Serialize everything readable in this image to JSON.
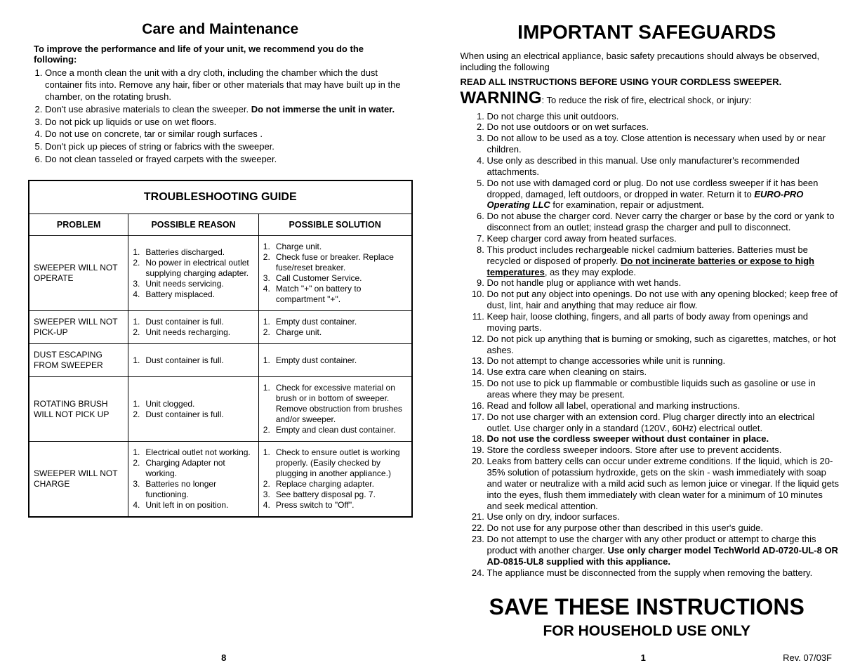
{
  "left": {
    "title": "Care and Maintenance",
    "intro": "To improve the  performance and life of your unit, we recommend you do the following:",
    "items": [
      {
        "pre": "Once a month clean the unit with a dry cloth, including the chamber which the dust container fits into. Remove any hair, fiber or other materials that may have built up in the chamber, on the rotating brush."
      },
      {
        "pre": "Don't use abrasive materials to clean the sweeper. ",
        "bold": "Do not immerse the unit in water."
      },
      {
        "pre": "Do not pick up liquids or use on wet floors."
      },
      {
        "pre": "Do not use on concrete, tar or similar rough surfaces ."
      },
      {
        "pre": "Don't pick up pieces of string or fabrics with the sweeper."
      },
      {
        "pre": "Do not clean tasseled or frayed carpets with the sweeper."
      }
    ],
    "trouble": {
      "title": "TROUBLESHOOTING GUIDE",
      "headers": [
        "PROBLEM",
        "POSSIBLE REASON",
        "POSSIBLE SOLUTION"
      ],
      "rows": [
        {
          "problem": "SWEEPER WILL NOT OPERATE",
          "reason": [
            "Batteries discharged.",
            "No power in electrical outlet supplying charging adapter.",
            "Unit needs servicing.",
            "Battery misplaced."
          ],
          "solution": [
            "Charge unit.",
            "Check fuse or breaker. Replace fuse/reset breaker.",
            "Call Customer Service.",
            "Match \"+\" on battery to compartment \"+\"."
          ]
        },
        {
          "problem": "SWEEPER  WILL NOT PICK-UP",
          "reason": [
            "Dust container is full.",
            "Unit needs recharging."
          ],
          "solution": [
            "Empty dust container.",
            "Charge unit."
          ]
        },
        {
          "problem": "DUST ESCAPING FROM SWEEPER",
          "reason": [
            "Dust container is full."
          ],
          "solution": [
            "Empty dust container."
          ]
        },
        {
          "problem": "ROTATING BRUSH WILL NOT PICK UP",
          "reason": [
            "Unit clogged.",
            "Dust container is full."
          ],
          "solution": [
            "Check for excessive material on brush or in bottom of sweeper. Remove obstruction from brushes and/or sweeper.",
            "Empty and clean dust container."
          ]
        },
        {
          "problem": "SWEEPER WILL NOT CHARGE",
          "reason": [
            "Electrical outlet not working.",
            "Charging Adapter not working.",
            "Batteries no longer functioning.",
            "Unit left in on position."
          ],
          "solution": [
            "Check to ensure outlet is working properly. (Easily checked by plugging in another appliance.)",
            "Replace charging adapter.",
            "See battery disposal pg. 7.",
            "Press switch to \"Off\"."
          ]
        }
      ]
    },
    "page_num": "8"
  },
  "right": {
    "title": "IMPORTANT SAFEGUARDS",
    "intro": "When using an electrical appliance, basic safety precautions should always be observed, including the following",
    "read_all": "READ ALL INSTRUCTIONS BEFORE USING YOUR CORDLESS SWEEPER.",
    "warning_big": "WARNING",
    "warning_rest": ": To reduce the risk of fire, electrical shock, or injury:",
    "items": [
      "Do not charge this unit outdoors.",
      "Do not use outdoors or on wet surfaces.",
      "Do not allow to be used as a toy.  Close attention is necessary when used by or near children.",
      "Use only as described in this manual.  Use only manufacturer's recommended attachments.",
      "Do not use with damaged cord or plug.  Do not use cordless sweeper if it has been dropped, damaged, left outdoors, or dropped in water. Return it to <bi>EURO-PRO Operating LLC</bi> for examination, repair or adjustment.",
      "Do not abuse the charger cord.  Never carry the charger or base by the cord or yank to disconnect from an outlet; instead grasp the charger and pull to disconnect.",
      "Keep charger cord away from heated surfaces.",
      "This product includes rechargeable nickel cadmium batteries. Batteries must be recycled or disposed of properly.  <bu>Do not incinerate batteries or expose to high temperatures</bu>, as they may explode.",
      "Do not handle plug or appliance with wet hands.",
      "Do not put any object into openings. Do not use with any opening blocked; keep free of dust, lint, hair and anything that may reduce air flow.",
      "Keep hair, loose clothing, fingers, and all parts of body away from openings and moving parts.",
      "Do not pick up anything that is burning or smoking, such as cigarettes, matches, or hot ashes.",
      "Do not attempt to change accessories while unit is running.",
      "Use extra care when cleaning on stairs.",
      "Do not use to pick up flammable or combustible liquids such as gasoline or use in areas where they may be present.",
      "Read and follow all label, operational  and marking instructions.",
      "Do not use charger with an extension cord. Plug charger directly into an electrical outlet.  Use charger only in a standard (120V., 60Hz) electrical outlet.",
      "<b>Do not use the cordless sweeper without dust container in place.</b>",
      "Store the cordless sweeper indoors.  Store after use to prevent accidents.",
      "Leaks from battery cells can occur under extreme conditions.  If the liquid, which is 20-35% solution of potassium hydroxide, gets on the skin - wash immediately with soap and water or neutralize with a mild acid such as lemon juice or vinegar.  If the liquid gets into the eyes, flush them immediately with clean water for a minimum of 10 minutes and seek medical attention.",
      "Use only on dry, indoor surfaces.",
      "Do not use for any purpose other than described in this user's guide.",
      "Do not attempt to use the charger with any other product or attempt to charge this product with another charger. <b>Use only charger model TechWorld AD-0720-UL-8 OR AD-0815-UL8 supplied with this appliance.</b>",
      "The appliance must be disconnected from the supply when removing the battery."
    ],
    "save": "SAVE THESE INSTRUCTIONS",
    "household": "FOR HOUSEHOLD USE ONLY",
    "page_num": "1",
    "rev": "Rev. 07/03F"
  }
}
